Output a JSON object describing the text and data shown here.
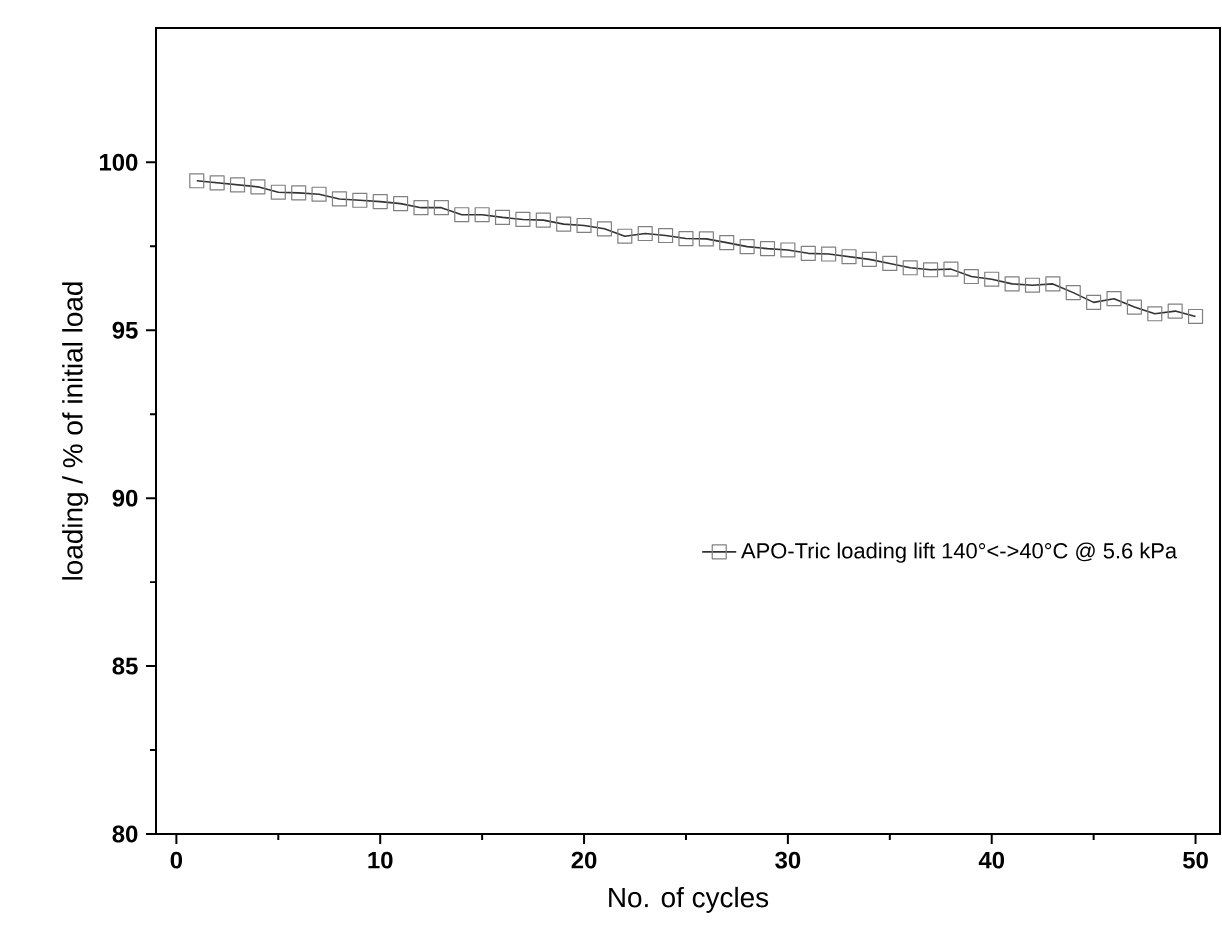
{
  "chart_data": {
    "type": "line",
    "xlabel": "No. of cycles",
    "ylabel": "loading / % of initial load",
    "x": [
      1,
      2,
      3,
      4,
      5,
      6,
      7,
      8,
      9,
      10,
      11,
      12,
      13,
      14,
      15,
      16,
      17,
      18,
      19,
      20,
      21,
      22,
      23,
      24,
      25,
      26,
      27,
      28,
      29,
      30,
      31,
      32,
      33,
      34,
      35,
      36,
      37,
      38,
      39,
      40,
      41,
      42,
      43,
      44,
      45,
      46,
      47,
      48,
      49,
      50
    ],
    "series": [
      {
        "name": "APO-Tric loading lift 140°<->40°C @ 5.6 kPa",
        "color": "#333333",
        "values": [
          99.45,
          99.39,
          99.33,
          99.27,
          99.11,
          99.09,
          99.05,
          98.91,
          98.87,
          98.83,
          98.77,
          98.65,
          98.65,
          98.44,
          98.44,
          98.36,
          98.3,
          98.28,
          98.16,
          98.12,
          98.02,
          97.8,
          97.88,
          97.82,
          97.73,
          97.72,
          97.61,
          97.49,
          97.43,
          97.39,
          97.29,
          97.27,
          97.19,
          97.11,
          96.99,
          96.86,
          96.8,
          96.82,
          96.6,
          96.52,
          96.38,
          96.34,
          96.38,
          96.12,
          95.83,
          95.94,
          95.69,
          95.49,
          95.57,
          95.41
        ]
      }
    ],
    "xlim": [
      -1,
      51.2
    ],
    "ylim": [
      80,
      104
    ],
    "xticks": [
      0,
      10,
      20,
      30,
      40,
      50
    ],
    "yticks": [
      80,
      85,
      90,
      95,
      100
    ],
    "marker": "square",
    "line_style": "solid",
    "legend": "right",
    "grid": false
  }
}
